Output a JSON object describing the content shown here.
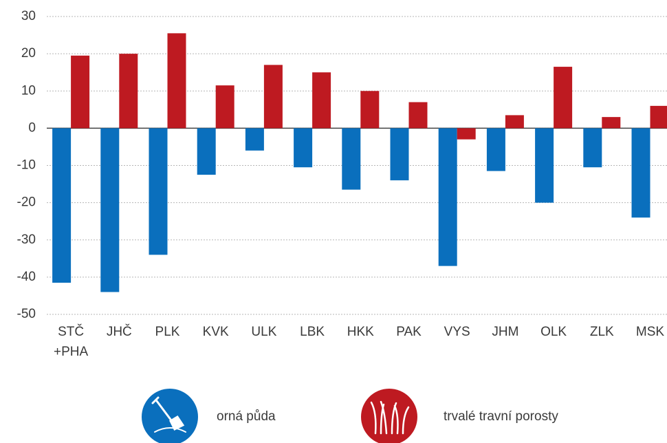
{
  "chart_data": {
    "type": "bar",
    "categories": [
      "STČ +PHA",
      "JHČ",
      "PLK",
      "KVK",
      "ULK",
      "LBK",
      "HKK",
      "PAK",
      "VYS",
      "JHM",
      "OLK",
      "ZLK",
      "MSK"
    ],
    "series": [
      {
        "name": "orná půda",
        "color": "#0a6fbd",
        "values": [
          -41.5,
          -44,
          -34,
          -12.5,
          -6,
          -10.5,
          -16.5,
          -14,
          -37,
          -11.5,
          -20,
          -10.5,
          -24
        ]
      },
      {
        "name": "trvalé travní porosty",
        "color": "#be1a21",
        "values": [
          19.5,
          20,
          25.5,
          11.5,
          17,
          15,
          10,
          7,
          -3,
          3.5,
          16.5,
          3,
          6
        ]
      }
    ],
    "ylim": [
      -50,
      30
    ],
    "yticks": [
      -50,
      -40,
      -30,
      -20,
      -10,
      0,
      10,
      20,
      30
    ],
    "grid": true
  }
}
